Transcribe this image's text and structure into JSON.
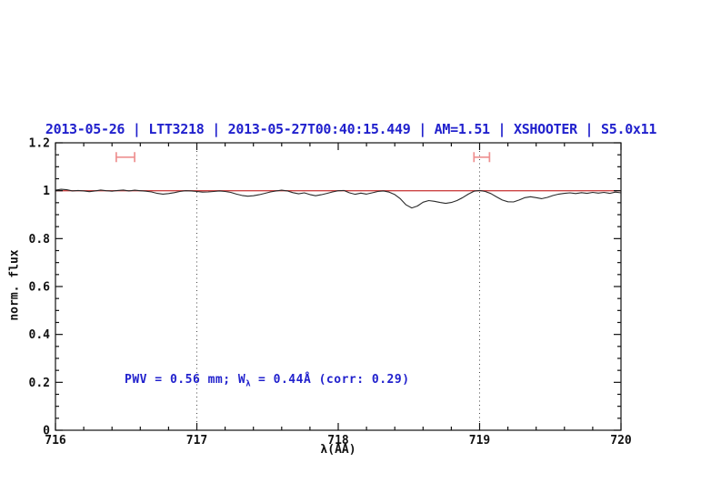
{
  "title": "2013-05-26 | LTT3218 | 2013-05-27T00:40:15.449 | AM=1.51 | XSHOOTER | S5.0x11",
  "annotation": {
    "prefix": "PWV = 0.56 mm; W",
    "sub": "λ",
    "suffix": " = 0.44Å (corr: 0.29)"
  },
  "colors": {
    "title_blue": "#2121cd",
    "spectrum_black": "#2a2a2a",
    "continuum_red": "#cc4444",
    "marker_salmon": "#ee9090",
    "dotted_gray": "#444444",
    "frame_black": "#111111"
  },
  "chart_data": {
    "type": "line",
    "title": "2013-05-26 | LTT3218 | 2013-05-27T00:40:15.449 | AM=1.51 | XSHOOTER | S5.0x11",
    "xlabel": "λ(AA)",
    "ylabel": "norm. flux",
    "xlim": [
      716,
      720
    ],
    "ylim": [
      0,
      1.2
    ],
    "grid": "off",
    "x_major_ticks": [
      716,
      717,
      718,
      719,
      720
    ],
    "x_tick_labels": [
      "716",
      "717",
      "718",
      "719",
      "720"
    ],
    "x_minor_step": 0.2,
    "y_major_ticks": [
      0,
      0.2,
      0.4,
      0.6,
      0.8,
      1,
      1.2
    ],
    "y_tick_labels": [
      "0",
      "0.2",
      "0.4",
      "0.6",
      "0.8",
      "1",
      "1.2"
    ],
    "y_minor_step": 0.05,
    "dotted_vlines": [
      717,
      719
    ],
    "continuum_level": 1.0,
    "range_markers": [
      {
        "x_start": 716.43,
        "x_end": 716.56,
        "y": 1.14
      },
      {
        "x_start": 718.96,
        "x_end": 719.07,
        "y": 1.14
      }
    ],
    "annotations": [
      "PWV = 0.56 mm; W_λ = 0.44Å (corr: 0.29)"
    ],
    "series": [
      {
        "name": "normalized-spectrum",
        "x_start": 716.0,
        "x_step": 0.04,
        "flux": [
          1.002,
          1.006,
          1.004,
          0.999,
          1.001,
          0.999,
          0.996,
          0.999,
          1.003,
          1.0,
          0.998,
          1.001,
          1.003,
          0.999,
          1.002,
          1.0,
          0.998,
          0.995,
          0.989,
          0.986,
          0.988,
          0.992,
          0.997,
          1.0,
          0.999,
          0.997,
          0.994,
          0.995,
          0.997,
          0.999,
          0.997,
          0.993,
          0.986,
          0.98,
          0.977,
          0.979,
          0.983,
          0.989,
          0.995,
          0.999,
          1.002,
          0.999,
          0.992,
          0.987,
          0.991,
          0.984,
          0.979,
          0.983,
          0.989,
          0.995,
          1.0,
          1.001,
          0.991,
          0.985,
          0.99,
          0.986,
          0.991,
          0.997,
          0.999,
          0.994,
          0.984,
          0.966,
          0.941,
          0.928,
          0.936,
          0.952,
          0.959,
          0.956,
          0.951,
          0.947,
          0.951,
          0.959,
          0.971,
          0.986,
          0.998,
          1.001,
          0.997,
          0.988,
          0.974,
          0.961,
          0.954,
          0.953,
          0.961,
          0.971,
          0.975,
          0.971,
          0.967,
          0.972,
          0.98,
          0.986,
          0.989,
          0.991,
          0.988,
          0.992,
          0.989,
          0.993,
          0.99,
          0.993,
          0.989,
          0.994,
          0.991
        ]
      }
    ]
  }
}
